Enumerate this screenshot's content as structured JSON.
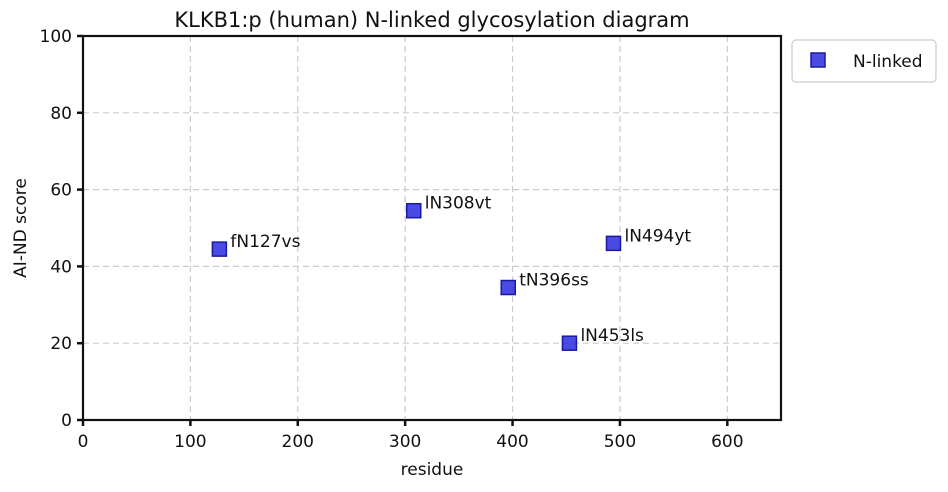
{
  "chart_data": {
    "type": "scatter",
    "title": "KLKB1:p (human) N-linked glycosylation diagram",
    "xlabel": "residue",
    "ylabel": "AI-ND score",
    "xlim": [
      0,
      650
    ],
    "ylim": [
      0,
      100
    ],
    "xticks": [
      0,
      100,
      200,
      300,
      400,
      500,
      600
    ],
    "yticks": [
      0,
      20,
      40,
      60,
      80,
      100
    ],
    "grid": true,
    "legend_position": "outside-top-right",
    "series": [
      {
        "name": "N-linked",
        "color": "#2a2ae0",
        "marker": "square",
        "points": [
          {
            "x": 127,
            "y": 44.5,
            "label": "fN127vs"
          },
          {
            "x": 308,
            "y": 54.5,
            "label": "lN308vt"
          },
          {
            "x": 396,
            "y": 34.5,
            "label": "tN396ss"
          },
          {
            "x": 453,
            "y": 20,
            "label": "lN453ls"
          },
          {
            "x": 494,
            "y": 46,
            "label": "lN494yt"
          }
        ]
      }
    ]
  }
}
